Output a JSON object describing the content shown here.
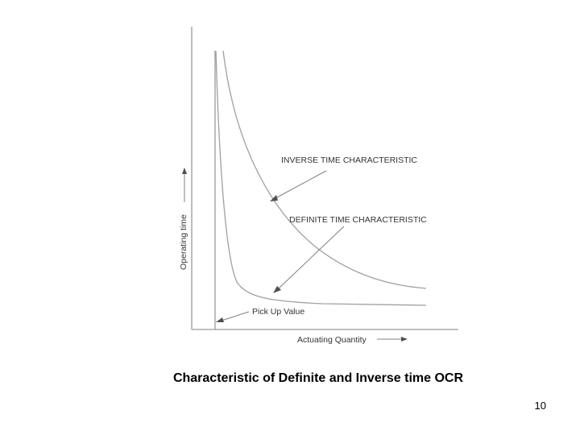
{
  "diagram": {
    "y_axis_label": "Operating time",
    "x_axis_label": "Actuating Quantity",
    "inverse_label": "INVERSE TIME CHARACTERISTIC",
    "definite_label": "DEFINITE TIME CHARACTERISTIC",
    "pickup_label": "Pick Up Value"
  },
  "caption": "Characteristic of Definite and Inverse time OCR",
  "page_number": "10",
  "colors": {
    "axis": "#9a9a9a",
    "curve": "#a0a0a0",
    "text": "#333333"
  }
}
